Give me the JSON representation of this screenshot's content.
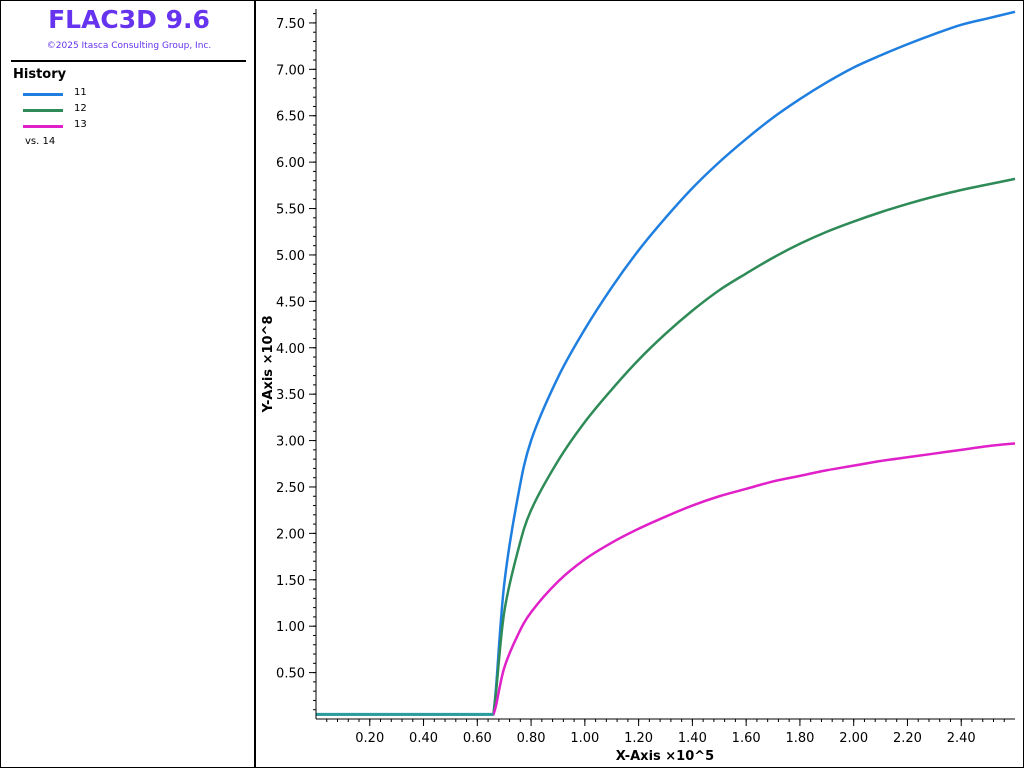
{
  "app": {
    "title": "FLAC3D 9.6",
    "copyright": "©2025 Itasca Consulting Group, Inc."
  },
  "legend": {
    "heading": "History",
    "entries": [
      {
        "label": "11",
        "color": "#1f7fe0"
      },
      {
        "label": "12",
        "color": "#2e8b57"
      },
      {
        "label": "13",
        "color": "#e020c8"
      }
    ],
    "vs_label": "vs. 14"
  },
  "chart_data": {
    "type": "line",
    "xlabel": "X-Axis ×10^5",
    "ylabel": "Y-Axis ×10^8",
    "xlim": [
      0.0,
      2.6
    ],
    "ylim": [
      0.0,
      7.65
    ],
    "x_ticks": [
      "0.20",
      "0.40",
      "0.60",
      "0.80",
      "1.00",
      "1.20",
      "1.40",
      "1.60",
      "1.80",
      "2.00",
      "2.20",
      "2.40"
    ],
    "y_ticks": [
      "0.50",
      "1.00",
      "1.50",
      "2.00",
      "2.50",
      "3.00",
      "3.50",
      "4.00",
      "4.50",
      "5.00",
      "5.50",
      "6.00",
      "6.50",
      "7.00",
      "7.50"
    ],
    "grid": false,
    "legend_position": "left-panel",
    "series": [
      {
        "name": "11",
        "color": "#1f7fe0",
        "x": [
          0.0,
          0.64,
          0.66,
          0.67,
          0.7,
          0.75,
          0.8,
          0.9,
          1.0,
          1.1,
          1.2,
          1.3,
          1.4,
          1.5,
          1.6,
          1.7,
          1.8,
          1.9,
          2.0,
          2.1,
          2.2,
          2.3,
          2.4,
          2.5,
          2.6
        ],
        "y": [
          0.05,
          0.05,
          0.05,
          0.35,
          1.45,
          2.38,
          3.0,
          3.68,
          4.2,
          4.65,
          5.05,
          5.4,
          5.72,
          6.0,
          6.25,
          6.48,
          6.68,
          6.86,
          7.02,
          7.15,
          7.27,
          7.38,
          7.48,
          7.55,
          7.62
        ]
      },
      {
        "name": "12",
        "color": "#2e8b57",
        "x": [
          0.0,
          0.64,
          0.66,
          0.67,
          0.7,
          0.75,
          0.8,
          0.9,
          1.0,
          1.1,
          1.2,
          1.3,
          1.4,
          1.5,
          1.6,
          1.7,
          1.8,
          1.9,
          2.0,
          2.1,
          2.2,
          2.3,
          2.4,
          2.5,
          2.6
        ],
        "y": [
          0.05,
          0.05,
          0.05,
          0.3,
          1.15,
          1.8,
          2.25,
          2.78,
          3.2,
          3.55,
          3.87,
          4.15,
          4.4,
          4.62,
          4.8,
          4.97,
          5.12,
          5.25,
          5.36,
          5.46,
          5.55,
          5.63,
          5.7,
          5.76,
          5.82
        ]
      },
      {
        "name": "13",
        "color": "#e020c8",
        "x": [
          0.0,
          0.64,
          0.66,
          0.67,
          0.7,
          0.75,
          0.8,
          0.9,
          1.0,
          1.1,
          1.2,
          1.3,
          1.4,
          1.5,
          1.6,
          1.7,
          1.8,
          1.9,
          2.0,
          2.1,
          2.2,
          2.3,
          2.4,
          2.5,
          2.6
        ],
        "y": [
          0.05,
          0.05,
          0.05,
          0.15,
          0.55,
          0.9,
          1.15,
          1.48,
          1.72,
          1.9,
          2.05,
          2.18,
          2.3,
          2.4,
          2.48,
          2.56,
          2.62,
          2.68,
          2.73,
          2.78,
          2.82,
          2.86,
          2.9,
          2.94,
          2.97
        ]
      }
    ],
    "baseline_color": "#2a9d9d"
  }
}
